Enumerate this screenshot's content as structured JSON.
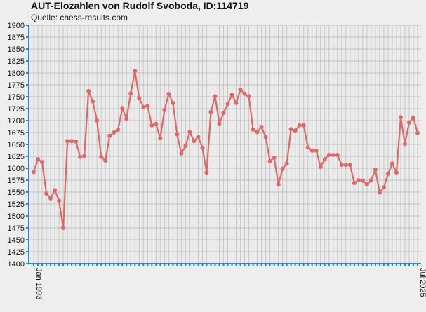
{
  "chart_data": {
    "type": "line",
    "title": "AUT-Elozahlen von Rudolf Svoboda, ID:114719",
    "subtitle": "Quelle: chess-results.com",
    "categories": [
      "Jan 1993",
      null,
      null,
      null,
      null,
      null,
      null,
      null,
      null,
      null,
      null,
      null,
      null,
      null,
      null,
      null,
      null,
      null,
      null,
      null,
      null,
      null,
      null,
      null,
      null,
      null,
      null,
      null,
      null,
      null,
      null,
      null,
      null,
      null,
      null,
      null,
      null,
      null,
      null,
      null,
      null,
      null,
      null,
      null,
      null,
      null,
      null,
      null,
      null,
      null,
      null,
      null,
      null,
      null,
      null,
      null,
      null,
      null,
      null,
      null,
      null,
      null,
      null,
      null,
      null,
      null,
      null,
      null,
      null,
      null,
      null,
      null,
      null,
      null,
      null,
      null,
      null,
      null,
      null,
      null,
      null,
      null,
      null,
      null,
      null,
      null,
      null,
      null,
      null,
      null,
      null,
      "Jul 2025"
    ],
    "series": [
      {
        "name": "Elo",
        "color": "#d86a6a",
        "values": [
          1592,
          1619,
          1613,
          1547,
          1537,
          1554,
          1532,
          1475,
          1657,
          1657,
          1656,
          1624,
          1626,
          1762,
          1740,
          1700,
          1624,
          1616,
          1668,
          1675,
          1681,
          1726,
          1704,
          1757,
          1804,
          1747,
          1728,
          1731,
          1690,
          1693,
          1663,
          1722,
          1756,
          1737,
          1671,
          1631,
          1647,
          1676,
          1657,
          1666,
          1643,
          1591,
          1718,
          1751,
          1694,
          1716,
          1735,
          1754,
          1737,
          1765,
          1756,
          1751,
          1681,
          1676,
          1687,
          1665,
          1615,
          1622,
          1566,
          1599,
          1610,
          1682,
          1679,
          1690,
          1690,
          1644,
          1637,
          1637,
          1603,
          1619,
          1628,
          1628,
          1628,
          1607,
          1607,
          1607,
          1569,
          1575,
          1574,
          1566,
          1575,
          1597,
          1549,
          1560,
          1588,
          1610,
          1591,
          1707,
          1651,
          1696,
          1706,
          1674
        ]
      }
    ],
    "ylim": [
      1400,
      1900
    ],
    "yticks": [
      1400,
      1425,
      1450,
      1475,
      1500,
      1525,
      1550,
      1575,
      1600,
      1625,
      1650,
      1675,
      1700,
      1725,
      1750,
      1775,
      1800,
      1825,
      1850,
      1875,
      1900
    ],
    "grid": true
  }
}
